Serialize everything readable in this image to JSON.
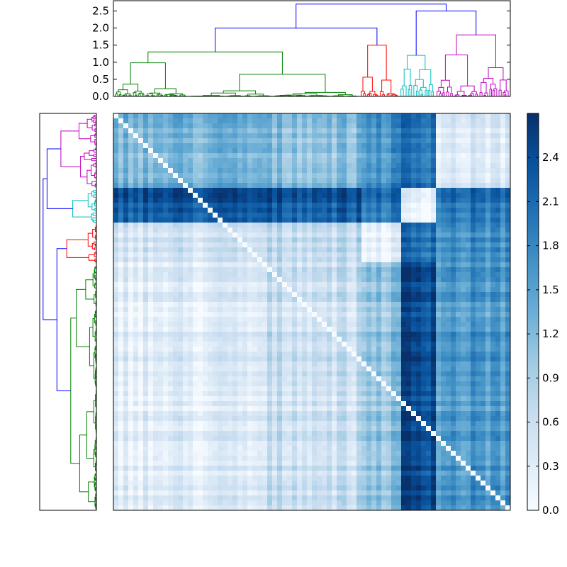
{
  "figure": {
    "title": "",
    "description_visible": ""
  },
  "colors": {
    "cluster_green": "#008000",
    "cluster_red": "#ff0000",
    "cluster_cyan": "#00bfbf",
    "cluster_magenta": "#bf00bf",
    "link_blue": "#0000ff",
    "cmap_low": "#f7fbff",
    "cmap_high": "#08306b"
  },
  "chart_data": [
    {
      "type": "dendrogram",
      "orientation": "top",
      "ylim": [
        0,
        2.8
      ],
      "yticks": [
        0.0,
        0.5,
        1.0,
        1.5,
        2.0,
        2.5
      ],
      "ytick_labels": [
        "0.0",
        "0.5",
        "1.0",
        "1.5",
        "2.0",
        "2.5"
      ],
      "xlabel": "",
      "ylabel": "",
      "clusters": [
        {
          "name": "green",
          "leaf_range": [
            0,
            0.62
          ],
          "top_merge": 1.3
        },
        {
          "name": "red",
          "leaf_range": [
            0.62,
            0.72
          ],
          "top_merge": 1.5
        },
        {
          "name": "cyan",
          "leaf_range": [
            0.72,
            0.81
          ],
          "top_merge": 1.2
        },
        {
          "name": "magenta",
          "leaf_range": [
            0.81,
            1.0
          ],
          "top_merge": 1.8
        }
      ],
      "root_merges": [
        {
          "children": [
            "green",
            "red"
          ],
          "height": 2.0
        },
        {
          "children": [
            "cyan",
            "magenta"
          ],
          "height": 2.5
        },
        {
          "children": [
            "green+red",
            "cyan+magenta"
          ],
          "height": 2.7
        }
      ]
    },
    {
      "type": "dendrogram",
      "orientation": "left",
      "xticks": [],
      "yticks": [],
      "clusters": [
        "magenta",
        "cyan",
        "red",
        "green"
      ],
      "order_top_to_bottom": [
        "magenta",
        "cyan",
        "red",
        "green"
      ]
    },
    {
      "type": "heatmap",
      "title": "",
      "xticks": [],
      "yticks": [],
      "value_range": [
        0,
        2.7
      ],
      "colormap": "Blues",
      "column_block_boundaries": [
        0,
        0.39,
        0.62,
        0.72,
        0.81,
        1.0
      ],
      "row_block_boundaries": [
        0,
        0.19,
        0.28,
        0.38,
        1.0
      ],
      "block_means": [
        [
          1.3,
          1.2,
          1.7,
          2.1,
          0.4
        ],
        [
          2.3,
          2.3,
          2.0,
          0.2,
          2.0
        ],
        [
          0.5,
          0.7,
          0.2,
          2.1,
          1.7
        ],
        [
          0.3,
          0.6,
          1.1,
          2.5,
          1.6
        ]
      ]
    },
    {
      "type": "colorbar",
      "range": [
        0,
        2.7
      ],
      "ticks": [
        0.0,
        0.3,
        0.6,
        0.9,
        1.2,
        1.5,
        1.8,
        2.1,
        2.4
      ],
      "tick_labels": [
        "0.0",
        "0.3",
        "0.6",
        "0.9",
        "1.2",
        "1.5",
        "1.8",
        "2.1",
        "2.4"
      ]
    }
  ]
}
